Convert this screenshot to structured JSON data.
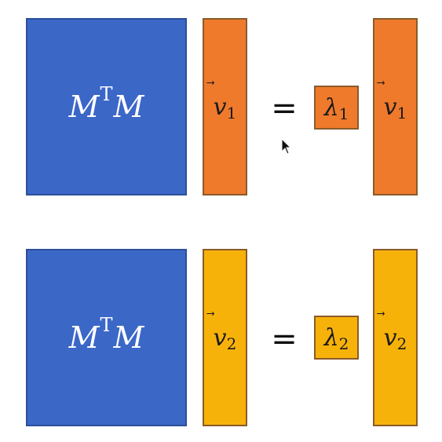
{
  "colors": {
    "matrix_fill": "#3b67c7",
    "row1_vector_fill": "#ef7a2c",
    "row2_vector_fill": "#f7b20a"
  },
  "rows": [
    {
      "matrix": {
        "base": "M",
        "sup": "T",
        "tail": "M"
      },
      "left_vector": {
        "symbol": "v",
        "arrow": "⃗",
        "sub": "1"
      },
      "equals": "=",
      "eigenvalue": {
        "symbol": "λ",
        "sub": "1"
      },
      "right_vector": {
        "symbol": "v",
        "arrow": "⃗",
        "sub": "1"
      }
    },
    {
      "matrix": {
        "base": "M",
        "sup": "T",
        "tail": "M"
      },
      "left_vector": {
        "symbol": "v",
        "arrow": "⃗",
        "sub": "2"
      },
      "equals": "=",
      "eigenvalue": {
        "symbol": "λ",
        "sub": "2"
      },
      "right_vector": {
        "symbol": "v",
        "arrow": "⃗",
        "sub": "2"
      }
    }
  ]
}
